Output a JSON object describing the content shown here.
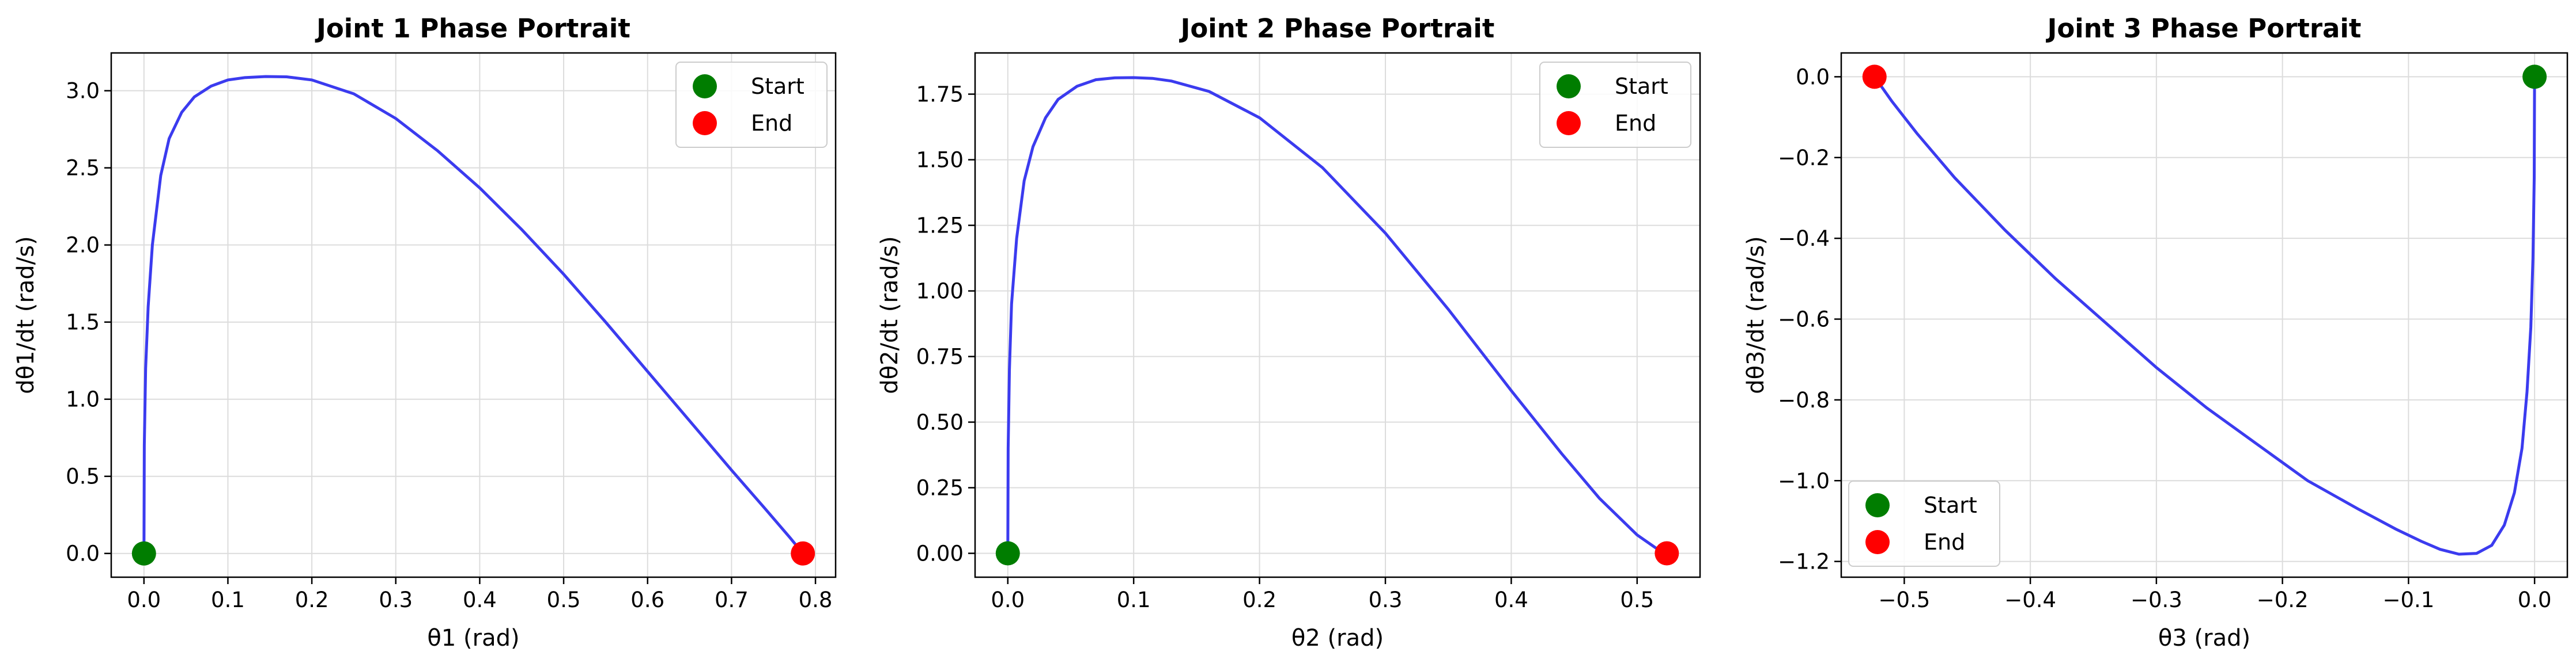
{
  "chart_data": [
    {
      "type": "line",
      "title": "Joint 1 Phase Portrait",
      "xlabel": "θ1 (rad)",
      "ylabel": "dθ1/dt (rad/s)",
      "xlim": [
        -0.039,
        0.824
      ],
      "ylim": [
        -0.154,
        3.245
      ],
      "xticks": [
        0.0,
        0.1,
        0.2,
        0.3,
        0.4,
        0.5,
        0.6,
        0.7,
        0.8
      ],
      "xtick_labels": [
        "0.0",
        "0.1",
        "0.2",
        "0.3",
        "0.4",
        "0.5",
        "0.6",
        "0.7",
        "0.8"
      ],
      "yticks": [
        0.0,
        0.5,
        1.0,
        1.5,
        2.0,
        2.5,
        3.0
      ],
      "ytick_labels": [
        "0.0",
        "0.5",
        "1.0",
        "1.5",
        "2.0",
        "2.5",
        "3.0"
      ],
      "grid": true,
      "legend": "top-right",
      "series": [
        {
          "style": "line",
          "color": "#3b3bef",
          "x": [
            0.0,
            0.0004,
            0.002,
            0.005,
            0.01,
            0.02,
            0.03,
            0.045,
            0.06,
            0.08,
            0.1,
            0.12,
            0.145,
            0.17,
            0.2,
            0.25,
            0.3,
            0.35,
            0.4,
            0.45,
            0.5,
            0.55,
            0.6,
            0.65,
            0.7,
            0.74,
            0.77,
            0.785
          ],
          "y": [
            0.0,
            0.7,
            1.2,
            1.6,
            2.0,
            2.45,
            2.69,
            2.86,
            2.96,
            3.03,
            3.07,
            3.085,
            3.092,
            3.09,
            3.07,
            2.98,
            2.82,
            2.61,
            2.37,
            2.1,
            1.81,
            1.5,
            1.18,
            0.86,
            0.54,
            0.29,
            0.1,
            0.0
          ]
        },
        {
          "name": "Start",
          "style": "marker",
          "color": "#007d00",
          "x": [
            0.0
          ],
          "y": [
            0.0
          ]
        },
        {
          "name": "End",
          "style": "marker",
          "color": "#ff0000",
          "x": [
            0.785
          ],
          "y": [
            0.0
          ]
        }
      ]
    },
    {
      "type": "line",
      "title": "Joint 2 Phase Portrait",
      "xlabel": "θ2 (rad)",
      "ylabel": "dθ2/dt (rad/s)",
      "xlim": [
        -0.026,
        0.55
      ],
      "ylim": [
        -0.091,
        1.907
      ],
      "xticks": [
        0.0,
        0.1,
        0.2,
        0.3,
        0.4,
        0.5
      ],
      "xtick_labels": [
        "0.0",
        "0.1",
        "0.2",
        "0.3",
        "0.4",
        "0.5"
      ],
      "yticks": [
        0.0,
        0.25,
        0.5,
        0.75,
        1.0,
        1.25,
        1.5,
        1.75
      ],
      "ytick_labels": [
        "0.00",
        "0.25",
        "0.50",
        "0.75",
        "1.00",
        "1.25",
        "1.50",
        "1.75"
      ],
      "grid": true,
      "legend": "top-right",
      "series": [
        {
          "style": "line",
          "color": "#3b3bef",
          "x": [
            0.0,
            0.0003,
            0.0013,
            0.003,
            0.007,
            0.013,
            0.02,
            0.03,
            0.04,
            0.055,
            0.07,
            0.085,
            0.1,
            0.115,
            0.13,
            0.16,
            0.2,
            0.25,
            0.3,
            0.35,
            0.4,
            0.44,
            0.47,
            0.5,
            0.515,
            0.5236
          ],
          "y": [
            0.0,
            0.4,
            0.7,
            0.95,
            1.2,
            1.42,
            1.55,
            1.66,
            1.73,
            1.78,
            1.805,
            1.812,
            1.813,
            1.81,
            1.8,
            1.76,
            1.66,
            1.47,
            1.22,
            0.93,
            0.62,
            0.38,
            0.21,
            0.07,
            0.02,
            0.0
          ]
        },
        {
          "name": "Start",
          "style": "marker",
          "color": "#007d00",
          "x": [
            0.0
          ],
          "y": [
            0.0
          ]
        },
        {
          "name": "End",
          "style": "marker",
          "color": "#ff0000",
          "x": [
            0.5236
          ],
          "y": [
            0.0
          ]
        }
      ]
    },
    {
      "type": "line",
      "title": "Joint 3 Phase Portrait",
      "xlabel": "θ3 (rad)",
      "ylabel": "dθ3/dt (rad/s)",
      "xlim": [
        -0.55,
        0.026
      ],
      "ylim": [
        -1.239,
        0.059
      ],
      "xticks": [
        -0.5,
        -0.4,
        -0.3,
        -0.2,
        -0.1,
        0.0
      ],
      "xtick_labels": [
        "−0.5",
        "−0.4",
        "−0.3",
        "−0.2",
        "−0.1",
        "0.0"
      ],
      "yticks": [
        -1.2,
        -1.0,
        -0.8,
        -0.6,
        -0.4,
        -0.2,
        0.0
      ],
      "ytick_labels": [
        "−1.2",
        "−1.0",
        "−0.8",
        "−0.6",
        "−0.4",
        "−0.2",
        "0.0"
      ],
      "grid": true,
      "legend": "bottom-left",
      "series": [
        {
          "style": "line",
          "color": "#3b3bef",
          "x": [
            0.0,
            -0.0003,
            -0.0013,
            -0.003,
            -0.006,
            -0.01,
            -0.016,
            -0.024,
            -0.034,
            -0.046,
            -0.06,
            -0.075,
            -0.09,
            -0.11,
            -0.14,
            -0.18,
            -0.22,
            -0.26,
            -0.3,
            -0.34,
            -0.38,
            -0.42,
            -0.46,
            -0.49,
            -0.51,
            -0.5236
          ],
          "y": [
            0.0,
            -0.25,
            -0.45,
            -0.62,
            -0.78,
            -0.92,
            -1.03,
            -1.11,
            -1.16,
            -1.18,
            -1.182,
            -1.17,
            -1.15,
            -1.12,
            -1.07,
            -1.0,
            -0.91,
            -0.82,
            -0.72,
            -0.61,
            -0.5,
            -0.38,
            -0.25,
            -0.14,
            -0.06,
            0.0
          ]
        },
        {
          "name": "Start",
          "style": "marker",
          "color": "#007d00",
          "x": [
            0.0
          ],
          "y": [
            0.0
          ]
        },
        {
          "name": "End",
          "style": "marker",
          "color": "#ff0000",
          "x": [
            -0.5236
          ],
          "y": [
            0.0
          ]
        }
      ]
    }
  ]
}
